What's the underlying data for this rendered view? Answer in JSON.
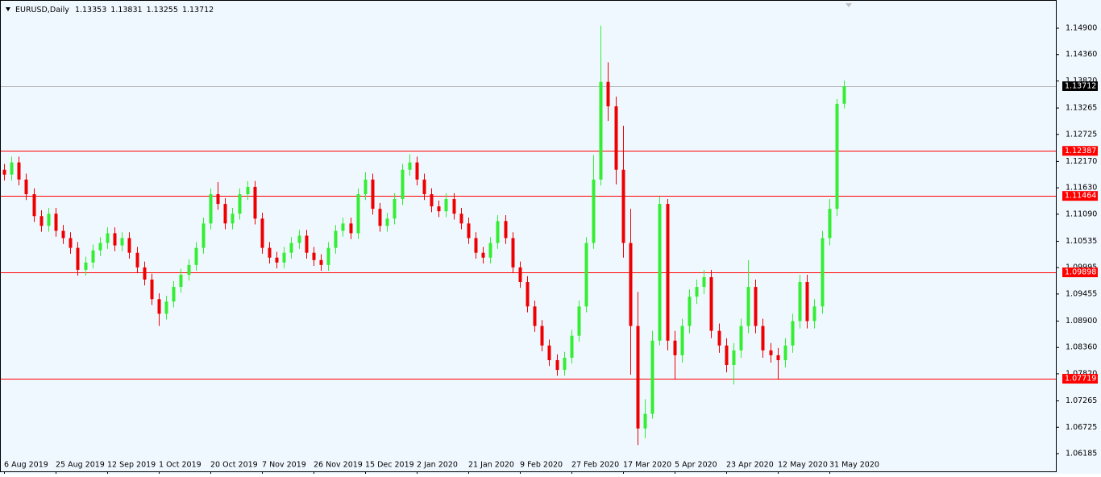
{
  "chart_data": {
    "type": "candlestick",
    "symbol": "EURUSD,Daily",
    "categories": [
      "6 Aug 2019",
      null,
      null,
      null,
      null,
      null,
      null,
      "25 Aug 2019",
      null,
      null,
      null,
      null,
      null,
      null,
      "12 Sep 2019",
      null,
      null,
      null,
      null,
      null,
      null,
      "1 Oct 2019",
      null,
      null,
      null,
      null,
      null,
      null,
      "20 Oct 2019",
      null,
      null,
      null,
      null,
      null,
      null,
      "7 Nov 2019",
      null,
      null,
      null,
      null,
      null,
      null,
      "26 Nov 2019",
      null,
      null,
      null,
      null,
      null,
      null,
      "15 Dec 2019",
      null,
      null,
      null,
      null,
      null,
      null,
      "2 Jan 2020",
      null,
      null,
      null,
      null,
      null,
      null,
      "21 Jan 2020",
      null,
      null,
      null,
      null,
      null,
      null,
      "9 Feb 2020",
      null,
      null,
      null,
      null,
      null,
      null,
      "27 Feb 2020",
      null,
      null,
      null,
      null,
      null,
      null,
      "17 Mar 2020",
      null,
      null,
      null,
      null,
      null,
      null,
      "5 Apr 2020",
      null,
      null,
      null,
      null,
      null,
      null,
      "23 Apr 2020",
      null,
      null,
      null,
      null,
      null,
      null,
      "12 May 2020",
      null,
      null,
      null,
      null,
      null,
      null,
      "31 May 2020",
      null,
      null
    ],
    "open": [
      1.12,
      1.119,
      1.1215,
      1.118,
      1.115,
      1.1105,
      1.1085,
      1.111,
      1.1075,
      1.106,
      1.104,
      1.0995,
      1.101,
      1.1035,
      1.105,
      1.107,
      1.1045,
      1.106,
      1.103,
      1.1,
      1.0975,
      1.0935,
      1.0905,
      1.093,
      1.096,
      1.0985,
      1.1005,
      1.104,
      1.109,
      1.115,
      1.113,
      1.109,
      1.111,
      1.115,
      1.1165,
      1.11,
      1.104,
      1.102,
      1.101,
      1.103,
      1.105,
      1.1065,
      1.103,
      1.1015,
      1.1005,
      1.104,
      1.1075,
      1.109,
      1.107,
      1.115,
      1.118,
      1.112,
      1.1085,
      1.11,
      1.114,
      1.12,
      1.1215,
      1.118,
      1.115,
      1.1125,
      1.1115,
      1.114,
      1.111,
      1.109,
      1.106,
      1.103,
      1.102,
      1.105,
      1.1095,
      1.106,
      1.1,
      1.097,
      1.092,
      1.088,
      1.084,
      1.081,
      1.079,
      1.0815,
      1.086,
      1.092,
      1.105,
      1.118,
      1.138,
      1.133,
      1.12,
      1.105,
      1.088,
      1.067,
      1.07,
      1.085,
      1.113,
      1.085,
      1.082,
      1.088,
      1.094,
      1.096,
      1.098,
      1.087,
      1.084,
      1.08,
      1.083,
      1.088,
      1.096,
      1.088,
      1.083,
      1.082,
      1.081,
      1.084,
      1.089,
      1.097,
      1.089,
      1.092,
      1.106,
      1.112,
      1.13353
    ],
    "high": [
      1.1212,
      1.1227,
      1.1227,
      1.1192,
      1.1162,
      1.1117,
      1.1122,
      1.1122,
      1.1087,
      1.1072,
      1.1052,
      1.1022,
      1.1047,
      1.1062,
      1.1082,
      1.1082,
      1.1072,
      1.1072,
      1.1042,
      1.1012,
      1.0987,
      1.0947,
      1.0942,
      1.0972,
      1.0997,
      1.1017,
      1.1052,
      1.1102,
      1.1162,
      1.1175,
      1.1142,
      1.1122,
      1.1162,
      1.1177,
      1.1177,
      1.1112,
      1.1052,
      1.1032,
      1.1042,
      1.1062,
      1.1077,
      1.1077,
      1.1042,
      1.1027,
      1.1052,
      1.1087,
      1.1102,
      1.1102,
      1.1162,
      1.1195,
      1.1192,
      1.1132,
      1.1112,
      1.1152,
      1.1212,
      1.1232,
      1.1227,
      1.1192,
      1.1162,
      1.1137,
      1.1152,
      1.1152,
      1.1122,
      1.1102,
      1.1072,
      1.1042,
      1.1062,
      1.1107,
      1.1107,
      1.1072,
      1.1012,
      1.0982,
      1.0932,
      1.0892,
      1.0852,
      1.0822,
      1.0827,
      1.0872,
      1.0932,
      1.1062,
      1.123,
      1.1495,
      1.142,
      1.135,
      1.129,
      1.112,
      1.095,
      1.073,
      1.087,
      1.1145,
      1.114,
      1.087,
      1.0895,
      1.0955,
      1.0975,
      1.0995,
      1.0995,
      1.0885,
      1.0855,
      1.0845,
      1.0895,
      1.1015,
      1.0975,
      1.0895,
      1.0845,
      1.0835,
      1.0855,
      1.0905,
      1.0985,
      1.0985,
      1.0935,
      1.1075,
      1.114,
      1.1345,
      1.13831
    ],
    "low": [
      1.1178,
      1.1178,
      1.1168,
      1.1138,
      1.1093,
      1.1073,
      1.1073,
      1.1063,
      1.1048,
      1.1028,
      1.0983,
      1.0983,
      1.0998,
      1.1023,
      1.1038,
      1.1033,
      1.1033,
      1.1018,
      1.0988,
      1.0963,
      1.0923,
      1.088,
      1.0893,
      1.0918,
      1.0948,
      1.0973,
      1.0993,
      1.1028,
      1.1078,
      1.1118,
      1.1078,
      1.1078,
      1.1098,
      1.1138,
      1.1088,
      1.1028,
      1.1008,
      1.0998,
      1.0998,
      1.1018,
      1.1038,
      1.1018,
      1.1003,
      1.0993,
      1.0993,
      1.1028,
      1.1063,
      1.1058,
      1.1058,
      1.1138,
      1.1108,
      1.1073,
      1.1073,
      1.1088,
      1.1128,
      1.1188,
      1.1168,
      1.1138,
      1.1113,
      1.1103,
      1.1103,
      1.1098,
      1.1078,
      1.1048,
      1.1018,
      1.1008,
      1.1008,
      1.1038,
      1.1048,
      1.0988,
      1.0958,
      1.0908,
      1.0868,
      1.0828,
      1.0798,
      1.0778,
      1.0778,
      1.0803,
      1.0848,
      1.0908,
      1.1038,
      1.1168,
      1.13,
      1.117,
      1.102,
      1.078,
      1.0636,
      1.065,
      1.069,
      1.084,
      1.083,
      1.077,
      1.0805,
      1.0865,
      1.0925,
      1.0945,
      1.0855,
      1.0825,
      1.0785,
      1.076,
      1.0815,
      1.0865,
      1.0865,
      1.0815,
      1.0805,
      1.077,
      1.0795,
      1.0825,
      1.0875,
      1.0875,
      1.0875,
      1.0905,
      1.1045,
      1.1105,
      1.13255
    ],
    "close": [
      1.119,
      1.1215,
      1.118,
      1.115,
      1.1105,
      1.1085,
      1.111,
      1.1075,
      1.106,
      1.104,
      1.0995,
      1.101,
      1.1035,
      1.105,
      1.107,
      1.1045,
      1.106,
      1.103,
      1.1,
      1.0975,
      1.0935,
      1.0905,
      1.093,
      1.096,
      1.0985,
      1.1005,
      1.104,
      1.109,
      1.115,
      1.113,
      1.109,
      1.111,
      1.115,
      1.1165,
      1.11,
      1.104,
      1.102,
      1.101,
      1.103,
      1.105,
      1.1065,
      1.103,
      1.1015,
      1.1005,
      1.104,
      1.1075,
      1.109,
      1.107,
      1.115,
      1.118,
      1.112,
      1.1085,
      1.11,
      1.114,
      1.12,
      1.1215,
      1.118,
      1.115,
      1.1125,
      1.1115,
      1.114,
      1.111,
      1.109,
      1.106,
      1.103,
      1.102,
      1.105,
      1.1095,
      1.106,
      1.1,
      1.097,
      1.092,
      1.088,
      1.084,
      1.081,
      1.079,
      1.0815,
      1.086,
      1.092,
      1.105,
      1.118,
      1.138,
      1.133,
      1.12,
      1.105,
      1.088,
      1.067,
      1.07,
      1.085,
      1.113,
      1.085,
      1.082,
      1.088,
      1.094,
      1.096,
      1.098,
      1.087,
      1.084,
      1.08,
      1.083,
      1.088,
      1.096,
      1.088,
      1.083,
      1.082,
      1.081,
      1.084,
      1.089,
      1.097,
      1.089,
      1.092,
      1.106,
      1.112,
      1.1335,
      1.13712
    ],
    "up_color": "#33ee33",
    "down_color": "#ee0000",
    "levels": [
      1.12387,
      1.11464,
      1.09898,
      1.07719
    ],
    "level_color": "#ff0000",
    "current_price": 1.13712,
    "current_color": "#b4b4b4",
    "ylim": [
      1.05805,
      1.15478
    ],
    "yticks": [
      {
        "value": 1.149,
        "label": "1.14900"
      },
      {
        "value": 1.1436,
        "label": "1.14360"
      },
      {
        "value": 1.1382,
        "label": "1.13820"
      },
      {
        "value": 1.13265,
        "label": "1.13265"
      },
      {
        "value": 1.12725,
        "label": "1.12725"
      },
      {
        "value": 1.1217,
        "label": "1.12170"
      },
      {
        "value": 1.1163,
        "label": "1.11630"
      },
      {
        "value": 1.1109,
        "label": "1.11090"
      },
      {
        "value": 1.10535,
        "label": "1.10535"
      },
      {
        "value": 1.09995,
        "label": "1.09995"
      },
      {
        "value": 1.09455,
        "label": "1.09455"
      },
      {
        "value": 1.089,
        "label": "1.08900"
      },
      {
        "value": 1.0836,
        "label": "1.08360"
      },
      {
        "value": 1.0782,
        "label": "1.07820"
      },
      {
        "value": 1.07265,
        "label": "1.07265"
      },
      {
        "value": 1.06725,
        "label": "1.06725"
      },
      {
        "value": 1.06185,
        "label": "1.06185"
      }
    ]
  }
}
